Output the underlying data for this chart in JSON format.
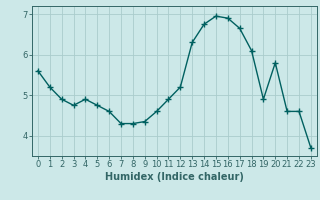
{
  "x": [
    0,
    1,
    2,
    3,
    4,
    5,
    6,
    7,
    8,
    9,
    10,
    11,
    12,
    13,
    14,
    15,
    16,
    17,
    18,
    19,
    20,
    21,
    22,
    23
  ],
  "y": [
    5.6,
    5.2,
    4.9,
    4.75,
    4.9,
    4.75,
    4.6,
    4.3,
    4.3,
    4.35,
    4.6,
    4.9,
    5.2,
    6.3,
    6.75,
    6.95,
    6.9,
    6.65,
    6.1,
    4.9,
    5.8,
    4.6,
    4.6,
    3.7
  ],
  "line_color": "#006060",
  "marker": "+",
  "marker_size": 4,
  "marker_linewidth": 1.0,
  "line_width": 1.0,
  "xlabel": "Humidex (Indice chaleur)",
  "ylim": [
    3.5,
    7.2
  ],
  "yticks": [
    4,
    5,
    6,
    7
  ],
  "xlim": [
    -0.5,
    23.5
  ],
  "xticks": [
    0,
    1,
    2,
    3,
    4,
    5,
    6,
    7,
    8,
    9,
    10,
    11,
    12,
    13,
    14,
    15,
    16,
    17,
    18,
    19,
    20,
    21,
    22,
    23
  ],
  "bg_color": "#cce8e8",
  "grid_color": "#aacccc",
  "axes_color": "#336666",
  "tick_label_fontsize": 6,
  "xlabel_fontsize": 7
}
